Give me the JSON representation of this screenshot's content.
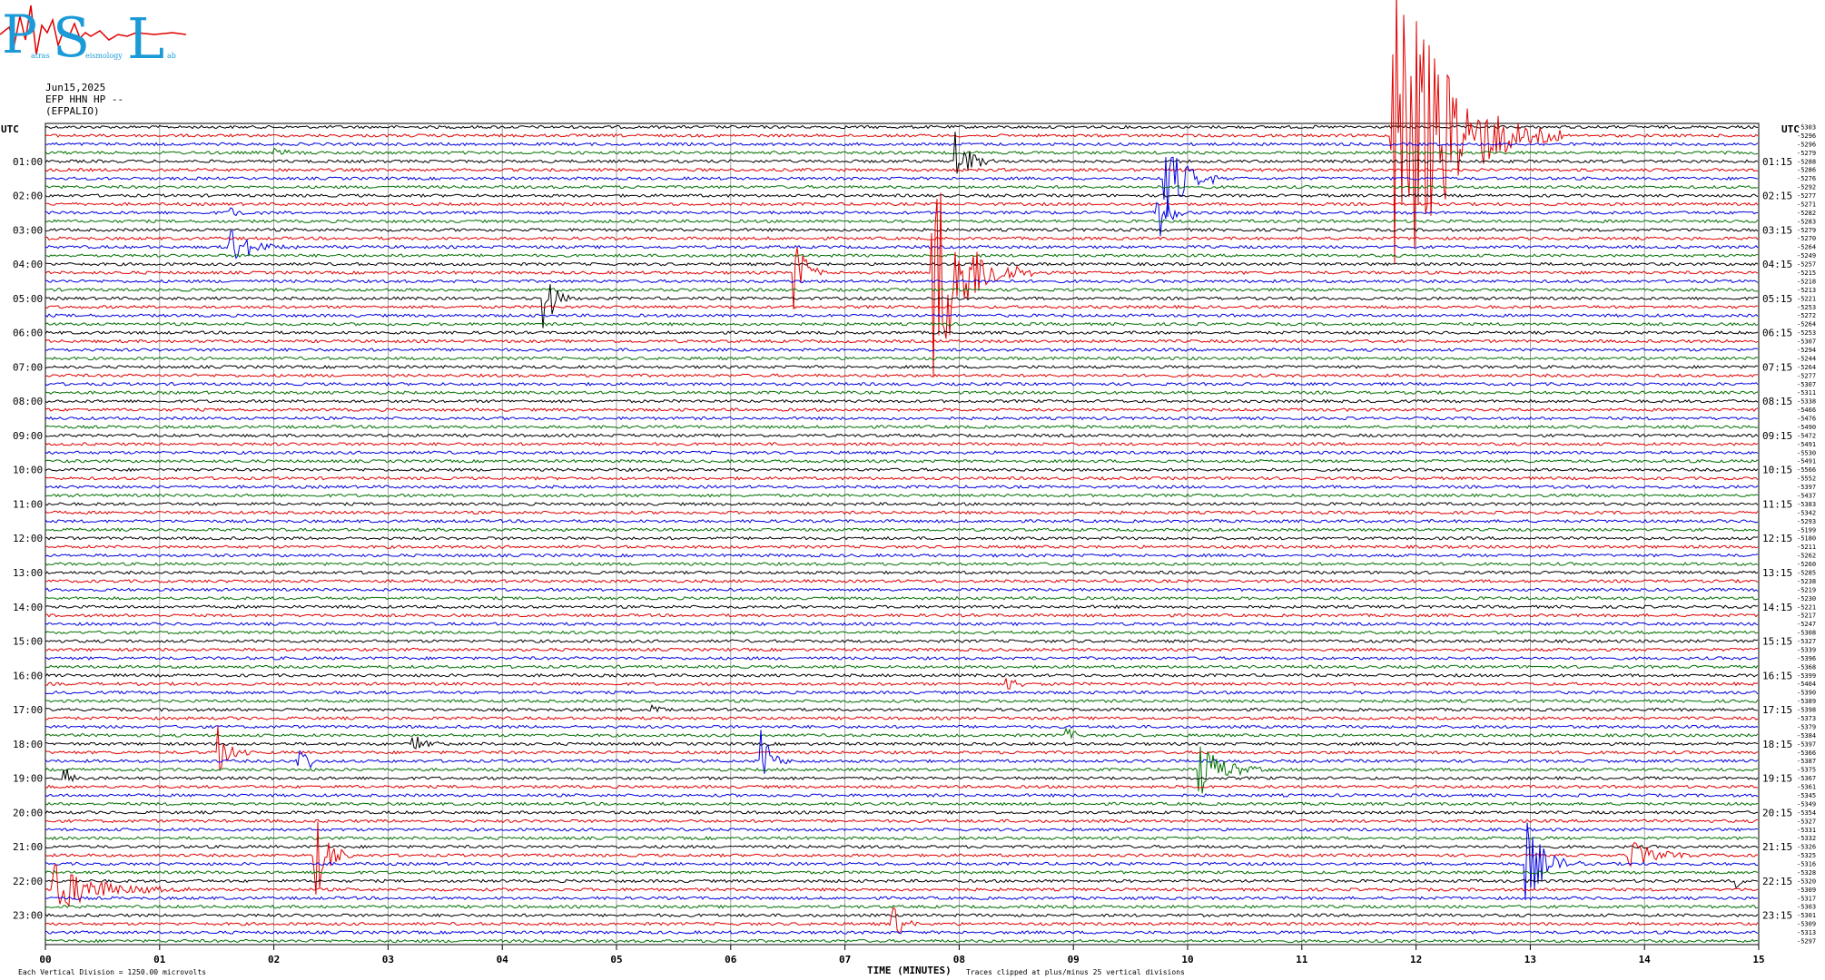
{
  "logo": {
    "text": "PSL",
    "subtitle_left": "atras",
    "subtitle_mid": "eismology",
    "subtitle_right": "ab"
  },
  "header": {
    "date": "Jun15,2025",
    "channel": "EFP HHN HP --",
    "location": "(EFPALIO)"
  },
  "utc_left": "UTC",
  "utc_right": "UTC",
  "footer": {
    "scale_note": "Each Vertical Division = 1250.00 microvolts",
    "clip_note": "Traces clipped at plus/minus 25 vertical divisions",
    "xlabel": "TIME (MINUTES)"
  },
  "chart_data": {
    "type": "line",
    "x_ticks": [
      "00",
      "01",
      "02",
      "03",
      "04",
      "05",
      "06",
      "07",
      "08",
      "09",
      "10",
      "11",
      "12",
      "13",
      "14",
      "15"
    ],
    "xlim": [
      0,
      15
    ],
    "grid": true,
    "series_colors": [
      "#000000",
      "#e00000",
      "#0000e0",
      "#007000"
    ],
    "hour_labels_left": [
      "01:00",
      "02:00",
      "03:00",
      "04:00",
      "05:00",
      "06:00",
      "07:00",
      "08:00",
      "09:00",
      "10:00",
      "11:00",
      "12:00",
      "13:00",
      "14:00",
      "15:00",
      "16:00",
      "17:00",
      "18:00",
      "19:00",
      "20:00",
      "21:00",
      "22:00",
      "23:00"
    ],
    "hour_labels_right": [
      "01:15",
      "02:15",
      "03:15",
      "04:15",
      "05:15",
      "06:15",
      "07:15",
      "08:15",
      "09:15",
      "10:15",
      "11:15",
      "12:15",
      "13:15",
      "14:15",
      "15:15",
      "16:15",
      "17:15",
      "18:15",
      "19:15",
      "20:15",
      "21:15",
      "22:15",
      "23:15"
    ],
    "row_values": [
      "-5303",
      "-5296",
      "-5296",
      "-5279",
      "-5288",
      "-5286",
      "-5276",
      "-5292",
      "-5277",
      "-5271",
      "-5282",
      "-5283",
      "-5279",
      "-5270",
      "-5264",
      "-5249",
      "-5257",
      "-5215",
      "-5218",
      "-5213",
      "-5221",
      "-5253",
      "-5272",
      "-5264",
      "-5253",
      "-5307",
      "-5294",
      "-5244",
      "-5264",
      "-5277",
      "-5307",
      "-5311",
      "-5338",
      "-5466",
      "-5476",
      "-5490",
      "-5472",
      "-5491",
      "-5530",
      "-5491",
      "-5566",
      "-5552",
      "-5397",
      "-5437",
      "-5383",
      "-5342",
      "-5293",
      "-5199",
      "-5180",
      "-5211",
      "-5262",
      "-5260",
      "-5285",
      "-5238",
      "-5219",
      "-5230",
      "-5221",
      "-5217",
      "-5247",
      "-5308",
      "-5327",
      "-5339",
      "-5396",
      "-5368",
      "-5399",
      "-5404",
      "-5390",
      "-5389",
      "-5398",
      "-5373",
      "-5379",
      "-5384",
      "-5397",
      "-5366",
      "-5387",
      "-5375",
      "-5367",
      "-5361",
      "-5345",
      "-5349",
      "-5354",
      "-5327",
      "-5331",
      "-5332",
      "-5326",
      "-5325",
      "-5316",
      "-5328",
      "-5320",
      "-5309",
      "-5317",
      "-5303",
      "-5301",
      "-5309",
      "-5313",
      "-5297"
    ],
    "events": [
      {
        "row": 14,
        "minute": 1.6,
        "amp": 28,
        "dur": 0.6,
        "sign": 0
      },
      {
        "row": 17,
        "minute": 6.55,
        "amp": 60,
        "dur": 0.3,
        "sign": 0
      },
      {
        "row": 17,
        "minute": 7.75,
        "amp": 140,
        "dur": 0.9,
        "sign": 0
      },
      {
        "row": 4,
        "minute": 7.95,
        "amp": 45,
        "dur": 0.4,
        "sign": 0
      },
      {
        "row": 6,
        "minute": 9.78,
        "amp": 55,
        "dur": 0.6,
        "sign": 0
      },
      {
        "row": 10,
        "minute": 9.72,
        "amp": 45,
        "dur": 0.3,
        "sign": 0
      },
      {
        "row": 1,
        "minute": 11.78,
        "amp": 230,
        "dur": 1.5,
        "sign": 0
      },
      {
        "row": 20,
        "minute": 4.35,
        "amp": 50,
        "dur": 0.3,
        "sign": 0
      },
      {
        "row": 10,
        "minute": 1.6,
        "amp": 8,
        "dur": 0.4,
        "sign": 0
      },
      {
        "row": 3,
        "minute": 2.0,
        "amp": 7,
        "dur": 0.4,
        "sign": 0
      },
      {
        "row": 73,
        "minute": 1.5,
        "amp": 35,
        "dur": 0.3,
        "sign": 0
      },
      {
        "row": 74,
        "minute": 2.2,
        "amp": 28,
        "dur": 0.3,
        "sign": 0
      },
      {
        "row": 72,
        "minute": 3.2,
        "amp": 12,
        "dur": 0.4,
        "sign": 0
      },
      {
        "row": 76,
        "minute": 0.15,
        "amp": 22,
        "dur": 0.2,
        "sign": 0
      },
      {
        "row": 74,
        "minute": 6.25,
        "amp": 45,
        "dur": 0.3,
        "sign": 0
      },
      {
        "row": 75,
        "minute": 10.08,
        "amp": 38,
        "dur": 0.7,
        "sign": 0
      },
      {
        "row": 68,
        "minute": 5.3,
        "amp": 9,
        "dur": 0.3,
        "sign": 0
      },
      {
        "row": 71,
        "minute": 8.92,
        "amp": 20,
        "dur": 0.2,
        "sign": 0
      },
      {
        "row": 65,
        "minute": 8.4,
        "amp": 12,
        "dur": 0.3,
        "sign": 0
      },
      {
        "row": 85,
        "minute": 2.35,
        "amp": 55,
        "dur": 0.4,
        "sign": 0
      },
      {
        "row": 85,
        "minute": 13.85,
        "amp": 22,
        "dur": 0.8,
        "sign": 0
      },
      {
        "row": 86,
        "minute": 12.95,
        "amp": 55,
        "dur": 0.5,
        "sign": 0
      },
      {
        "row": 89,
        "minute": 0.05,
        "amp": 32,
        "dur": 1.3,
        "sign": 0
      },
      {
        "row": 88,
        "minute": 14.8,
        "amp": 14,
        "dur": 0.2,
        "sign": 0
      },
      {
        "row": 93,
        "minute": 7.4,
        "amp": 28,
        "dur": 0.3,
        "sign": 0
      }
    ]
  }
}
